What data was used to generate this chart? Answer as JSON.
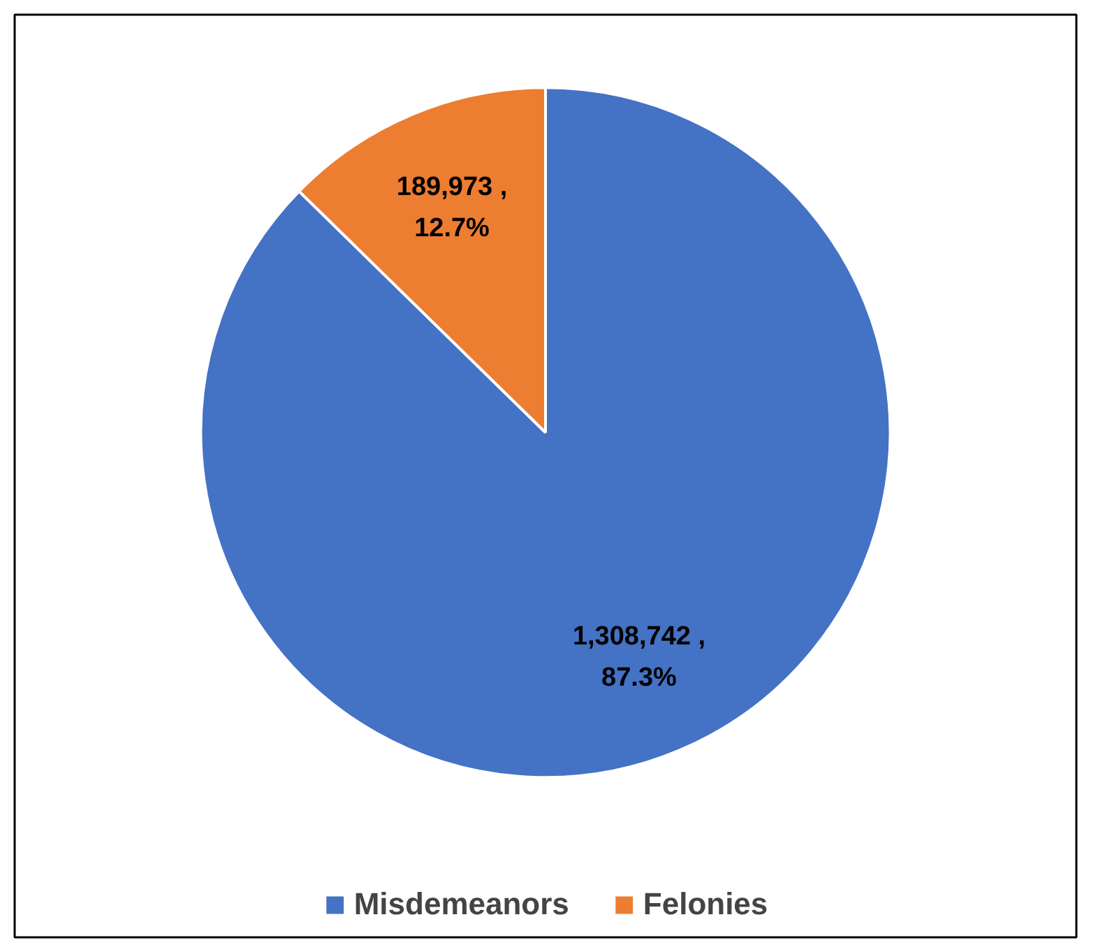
{
  "chart_data": {
    "type": "pie",
    "categories": [
      "Misdemeanors",
      "Felonies"
    ],
    "values": [
      1308742,
      189973
    ],
    "colors": [
      "#4472c4",
      "#ed7d31"
    ],
    "value_labels": [
      "1,308,742 , 87.3%",
      "189,973 , 12.7%"
    ],
    "legend": "bottom"
  }
}
